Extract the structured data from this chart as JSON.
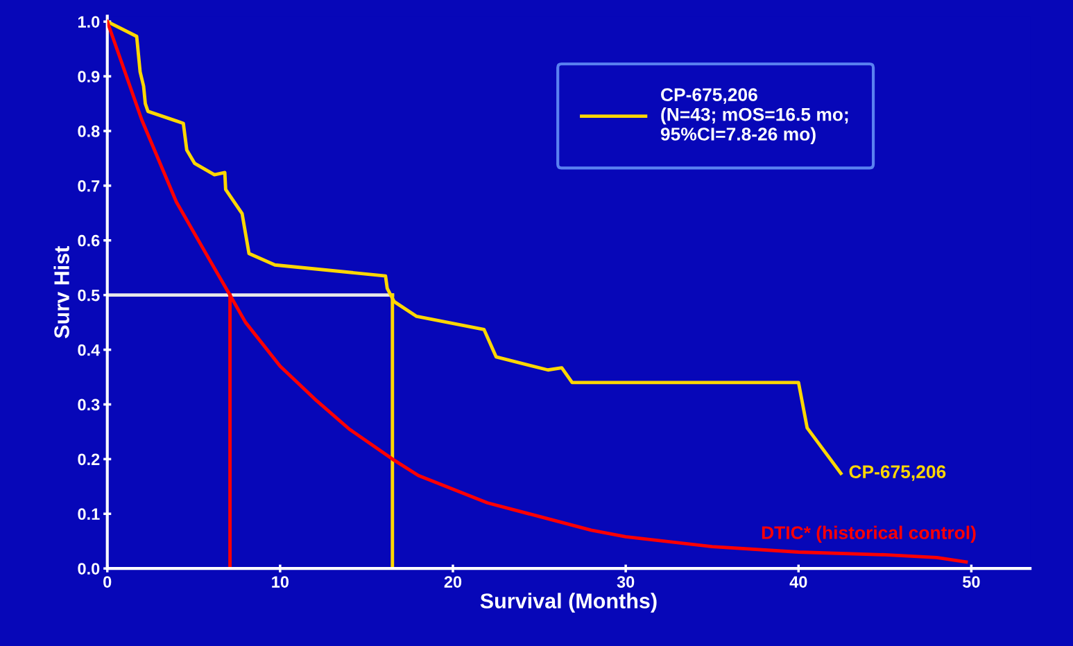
{
  "chart_data": {
    "type": "line",
    "xlabel": "Survival (Months)",
    "ylabel": "Surv Hist",
    "xlim": [
      0,
      53.4
    ],
    "ylim": [
      0,
      1.01
    ],
    "xticks": [
      0,
      10,
      20,
      30,
      40,
      50
    ],
    "yticks": [
      {
        "value": 0,
        "label": "0.0"
      },
      {
        "value": 0.1,
        "label": "0.1"
      },
      {
        "value": 0.2,
        "label": "0.2"
      },
      {
        "value": 0.3,
        "label": "0.3"
      },
      {
        "value": 0.4,
        "label": "0.4"
      },
      {
        "value": 0.5,
        "label": "0.5"
      },
      {
        "value": 0.6,
        "label": "0.6"
      },
      {
        "value": 0.7,
        "label": "0.7"
      },
      {
        "value": 0.8,
        "label": "0.8"
      },
      {
        "value": 0.9,
        "label": "0.9"
      },
      {
        "value": 1.0,
        "label": "1.0"
      }
    ],
    "grid": false,
    "legend": "top right",
    "marker": "none",
    "line_style": "solid",
    "series": [
      {
        "name": "CP-675,206\n(N=43; mOS=16.5 mo;\n95%CI=7.8-26 mo)",
        "color": "#ffd700",
        "x": [
          0,
          1.7,
          1.9,
          2.1,
          2.2,
          2.35,
          4.4,
          4.6,
          5.05,
          6.2,
          6.8,
          6.85,
          7.8,
          8.2,
          9.7,
          16.1,
          16.2,
          16.6,
          17.9,
          21.8,
          22.5,
          25.5,
          26.3,
          26.9,
          40.0,
          40.5,
          42.45
        ],
        "values": [
          1.0,
          0.973,
          0.908,
          0.882,
          0.85,
          0.836,
          0.814,
          0.765,
          0.741,
          0.72,
          0.724,
          0.693,
          0.649,
          0.576,
          0.555,
          0.535,
          0.512,
          0.488,
          0.461,
          0.437,
          0.387,
          0.363,
          0.367,
          0.34,
          0.34,
          0.257,
          0.174
        ]
      },
      {
        "name": "DTIC* (historical control)",
        "color": "#ff0000",
        "x": [
          0,
          2,
          4,
          6,
          7.1,
          8,
          10,
          12,
          14,
          16.5,
          18,
          20,
          22,
          25,
          28,
          30,
          35,
          40,
          45,
          48,
          49.7
        ],
        "values": [
          1.0,
          0.82,
          0.67,
          0.56,
          0.5,
          0.45,
          0.37,
          0.31,
          0.255,
          0.2,
          0.17,
          0.145,
          0.12,
          0.095,
          0.07,
          0.058,
          0.04,
          0.03,
          0.025,
          0.02,
          0.012
        ]
      },
      {
        "color": "#e8e8e8",
        "x": [
          0,
          16.5
        ],
        "values": [
          0.5,
          0.5
        ]
      },
      {
        "color": "#ff0000",
        "x": [
          7.1,
          7.1
        ],
        "values": [
          0,
          0.5
        ]
      },
      {
        "color": "#ffd700",
        "x": [
          16.5,
          16.5
        ],
        "values": [
          0,
          0.5
        ]
      }
    ],
    "annotations": [
      {
        "text": "CP-675,206",
        "x": 42.45,
        "y": 0.174
      }
    ]
  }
}
